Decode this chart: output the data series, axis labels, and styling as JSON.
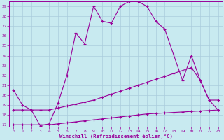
{
  "xlabel": "Windchill (Refroidissement éolien,°C)",
  "xlim": [
    -0.5,
    23.5
  ],
  "ylim": [
    16.8,
    29.5
  ],
  "xticks": [
    0,
    1,
    2,
    3,
    4,
    5,
    6,
    7,
    8,
    9,
    10,
    11,
    12,
    13,
    14,
    15,
    16,
    17,
    18,
    19,
    20,
    21,
    22,
    23
  ],
  "yticks": [
    17,
    18,
    19,
    20,
    21,
    22,
    23,
    24,
    25,
    26,
    27,
    28,
    29
  ],
  "bg_color": "#c8eaf0",
  "line_color": "#990099",
  "grid_color": "#aaccdd",
  "series1_x": [
    0,
    1,
    2,
    3,
    4,
    5,
    6,
    7,
    8,
    9,
    10,
    11,
    12,
    13,
    14,
    15,
    16,
    17,
    18,
    19,
    20,
    21,
    22,
    23
  ],
  "series1_y": [
    20.5,
    19.0,
    18.5,
    16.9,
    17.1,
    19.2,
    22.0,
    26.3,
    25.2,
    29.0,
    27.5,
    27.3,
    29.0,
    29.5,
    29.5,
    29.0,
    27.5,
    26.7,
    24.1,
    21.5,
    24.0,
    21.5,
    19.5,
    18.5
  ],
  "series2_x": [
    0,
    1,
    2,
    3,
    4,
    5,
    6,
    7,
    8,
    9,
    10,
    11,
    12,
    13,
    14,
    15,
    16,
    17,
    18,
    19,
    20,
    21,
    22,
    23
  ],
  "series2_y": [
    18.5,
    18.5,
    18.5,
    18.5,
    18.5,
    18.7,
    18.9,
    19.1,
    19.3,
    19.5,
    19.8,
    20.1,
    20.4,
    20.7,
    21.0,
    21.3,
    21.6,
    21.9,
    22.2,
    22.5,
    22.8,
    21.5,
    19.5,
    19.5
  ],
  "series3_x": [
    0,
    1,
    2,
    3,
    4,
    5,
    6,
    7,
    8,
    9,
    10,
    11,
    12,
    13,
    14,
    15,
    16,
    17,
    18,
    19,
    20,
    21,
    22,
    23
  ],
  "series3_y": [
    17.0,
    17.0,
    17.0,
    17.0,
    17.0,
    17.1,
    17.2,
    17.3,
    17.4,
    17.5,
    17.6,
    17.7,
    17.8,
    17.9,
    18.0,
    18.1,
    18.15,
    18.2,
    18.25,
    18.3,
    18.35,
    18.4,
    18.45,
    18.5
  ]
}
